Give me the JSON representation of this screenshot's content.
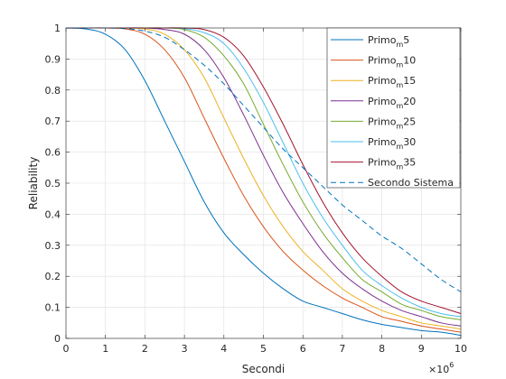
{
  "chart_data": {
    "type": "line",
    "xlabel": "Secondi",
    "ylabel": "Reliability",
    "x_exponent_base": "×10",
    "x_exponent_power": "6",
    "xlim": [
      0,
      10
    ],
    "ylim": [
      0,
      1
    ],
    "xticks": [
      "0",
      "1",
      "2",
      "3",
      "4",
      "5",
      "6",
      "7",
      "8",
      "9",
      "10"
    ],
    "yticks": [
      "0",
      "0.1",
      "0.2",
      "0.3",
      "0.4",
      "0.5",
      "0.6",
      "0.7",
      "0.8",
      "0.9",
      "1"
    ],
    "grid": true,
    "legend_position": "top-right",
    "x": [
      0,
      0.5,
      1,
      1.5,
      2,
      2.5,
      3,
      3.5,
      4,
      4.5,
      5,
      5.5,
      6,
      6.5,
      7,
      7.5,
      8,
      8.5,
      9,
      9.5,
      10
    ],
    "series": [
      {
        "name": "Primo",
        "subscript": "m",
        "suffix": "5",
        "color": "#0072BD",
        "dash": false,
        "values": [
          1,
          0.997,
          0.98,
          0.93,
          0.83,
          0.7,
          0.57,
          0.44,
          0.34,
          0.27,
          0.21,
          0.16,
          0.12,
          0.1,
          0.08,
          0.06,
          0.045,
          0.035,
          0.025,
          0.02,
          0.01
        ]
      },
      {
        "name": "Primo",
        "subscript": "m",
        "suffix": "10",
        "color": "#D95319",
        "dash": false,
        "values": [
          1,
          1,
          1,
          0.997,
          0.98,
          0.93,
          0.84,
          0.71,
          0.58,
          0.46,
          0.36,
          0.28,
          0.22,
          0.17,
          0.13,
          0.1,
          0.07,
          0.055,
          0.04,
          0.03,
          0.02
        ]
      },
      {
        "name": "Primo",
        "subscript": "m",
        "suffix": "15",
        "color": "#EDB120",
        "dash": false,
        "values": [
          1,
          1,
          1,
          1,
          0.997,
          0.98,
          0.93,
          0.84,
          0.71,
          0.58,
          0.46,
          0.36,
          0.28,
          0.22,
          0.16,
          0.12,
          0.09,
          0.07,
          0.05,
          0.04,
          0.03
        ]
      },
      {
        "name": "Primo",
        "subscript": "m",
        "suffix": "20",
        "color": "#7E2F8E",
        "dash": false,
        "values": [
          1,
          1,
          1,
          1,
          1,
          0.995,
          0.98,
          0.93,
          0.84,
          0.72,
          0.59,
          0.47,
          0.37,
          0.28,
          0.21,
          0.16,
          0.12,
          0.09,
          0.07,
          0.05,
          0.04
        ]
      },
      {
        "name": "Primo",
        "subscript": "m",
        "suffix": "25",
        "color": "#77AC30",
        "dash": false,
        "values": [
          1,
          1,
          1,
          1,
          1,
          1,
          0.995,
          0.97,
          0.91,
          0.82,
          0.69,
          0.56,
          0.44,
          0.34,
          0.26,
          0.19,
          0.15,
          0.11,
          0.09,
          0.07,
          0.06
        ]
      },
      {
        "name": "Primo",
        "subscript": "m",
        "suffix": "30",
        "color": "#4DBEEE",
        "dash": false,
        "values": [
          1,
          1,
          1,
          1,
          1,
          1,
          0.998,
          0.985,
          0.95,
          0.87,
          0.76,
          0.63,
          0.5,
          0.39,
          0.3,
          0.22,
          0.17,
          0.13,
          0.1,
          0.08,
          0.07
        ]
      },
      {
        "name": "Primo",
        "subscript": "m",
        "suffix": "35",
        "color": "#A2142F",
        "dash": false,
        "values": [
          1,
          1,
          1,
          1,
          1,
          1,
          1,
          0.995,
          0.97,
          0.91,
          0.81,
          0.69,
          0.56,
          0.44,
          0.34,
          0.26,
          0.2,
          0.15,
          0.12,
          0.1,
          0.08
        ]
      },
      {
        "name": "Secondo Sistema",
        "color": "#0072BD",
        "dash": true,
        "values": [
          1,
          1,
          1,
          0.998,
          0.99,
          0.97,
          0.93,
          0.88,
          0.82,
          0.75,
          0.68,
          0.61,
          0.55,
          0.49,
          0.43,
          0.38,
          0.33,
          0.29,
          0.24,
          0.19,
          0.15
        ]
      }
    ]
  }
}
